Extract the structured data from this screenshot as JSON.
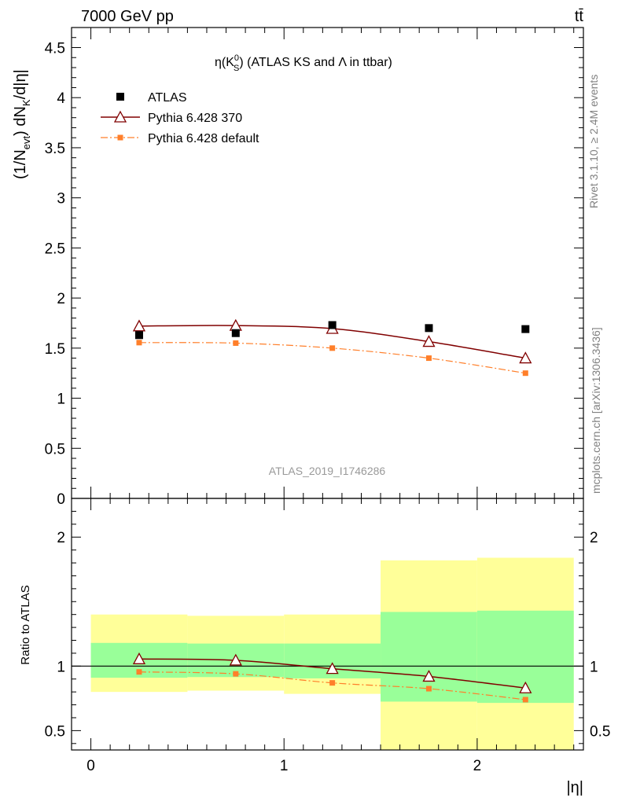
{
  "header": {
    "left_label": "7000 GeV pp",
    "right_label": "tt̄"
  },
  "side_labels": {
    "rivet": "Rivet 3.1.10, ≥ 2.4M events",
    "mcplots": "mcplots.cern.ch [arXiv:1306.3436]"
  },
  "colors": {
    "atlas": "#000000",
    "pythia_370": "#800000",
    "pythia_default": "#ff7f2a",
    "band_inner": "#99ff99",
    "band_outer": "#ffff99"
  },
  "chart_data": [
    {
      "type": "scatter",
      "title": "η(K⁰S) (ATLAS KS and Λ in ttbar)",
      "title_parts": {
        "pre": "η(K",
        "sup": "0",
        "sub": "S",
        "post": ") (ATLAS KS and Λ in ttbar)"
      },
      "ylabel": "(1/Nevt) dNK/d|η|",
      "ylabel_parts": {
        "a": "(1/N",
        "sub1": "evt",
        "b": ") dN",
        "sub2": "K",
        "c": "/d|η|"
      },
      "xlabel": "",
      "xlim": [
        -0.1,
        2.55
      ],
      "ylim": [
        0,
        4.7
      ],
      "yticks": [
        "0",
        "0.5",
        "1",
        "1.5",
        "2",
        "2.5",
        "3",
        "3.5",
        "4",
        "4.5"
      ],
      "ytick_values": [
        0,
        0.5,
        1,
        1.5,
        2,
        2.5,
        3,
        3.5,
        4,
        4.5
      ],
      "watermark": "ATLAS_2019_I1746286",
      "legend_position": "top-left",
      "x": [
        0.25,
        0.75,
        1.25,
        1.75,
        2.25
      ],
      "series": [
        {
          "name": "ATLAS",
          "marker": "filled-square",
          "values": [
            1.63,
            1.65,
            1.73,
            1.7,
            1.69
          ]
        },
        {
          "name": "Pythia 6.428 370",
          "marker": "open-triangle",
          "line": "solid",
          "values": [
            1.72,
            1.725,
            1.695,
            1.565,
            1.4
          ]
        },
        {
          "name": "Pythia 6.428 default",
          "marker": "small-square",
          "line": "dash-dot",
          "values": [
            1.555,
            1.55,
            1.5,
            1.4,
            1.25
          ]
        }
      ]
    },
    {
      "type": "scatter",
      "title": "",
      "ylabel": "Ratio to ATLAS",
      "xlabel": "|η|",
      "xlim": [
        -0.1,
        2.55
      ],
      "ylim": [
        0.35,
        2.3
      ],
      "xticks": [
        "0",
        "1",
        "2"
      ],
      "xtick_values": [
        0,
        1,
        2
      ],
      "yticks": [
        "0.5",
        "1",
        "2"
      ],
      "ytick_values": [
        0.5,
        1,
        2
      ],
      "reference_line": 1,
      "bins": [
        [
          0,
          0.5
        ],
        [
          0.5,
          1.0
        ],
        [
          1.0,
          1.5
        ],
        [
          1.5,
          2.0
        ],
        [
          2.0,
          2.5
        ]
      ],
      "band_outer": {
        "low": [
          0.8,
          0.81,
          0.785,
          0.35,
          0.35
        ],
        "high": [
          1.4,
          1.39,
          1.4,
          1.82,
          1.84
        ]
      },
      "band_inner": {
        "low": [
          0.91,
          0.915,
          0.905,
          0.725,
          0.715
        ],
        "high": [
          1.18,
          1.175,
          1.175,
          1.42,
          1.43
        ]
      },
      "x": [
        0.25,
        0.75,
        1.25,
        1.75,
        2.25
      ],
      "series": [
        {
          "name": "Pythia 6.428 370",
          "marker": "open-triangle",
          "line": "solid",
          "values": [
            1.055,
            1.045,
            0.98,
            0.92,
            0.83
          ]
        },
        {
          "name": "Pythia 6.428 default",
          "marker": "small-square",
          "line": "dash-dot",
          "values": [
            0.955,
            0.94,
            0.87,
            0.825,
            0.74
          ]
        }
      ]
    }
  ]
}
